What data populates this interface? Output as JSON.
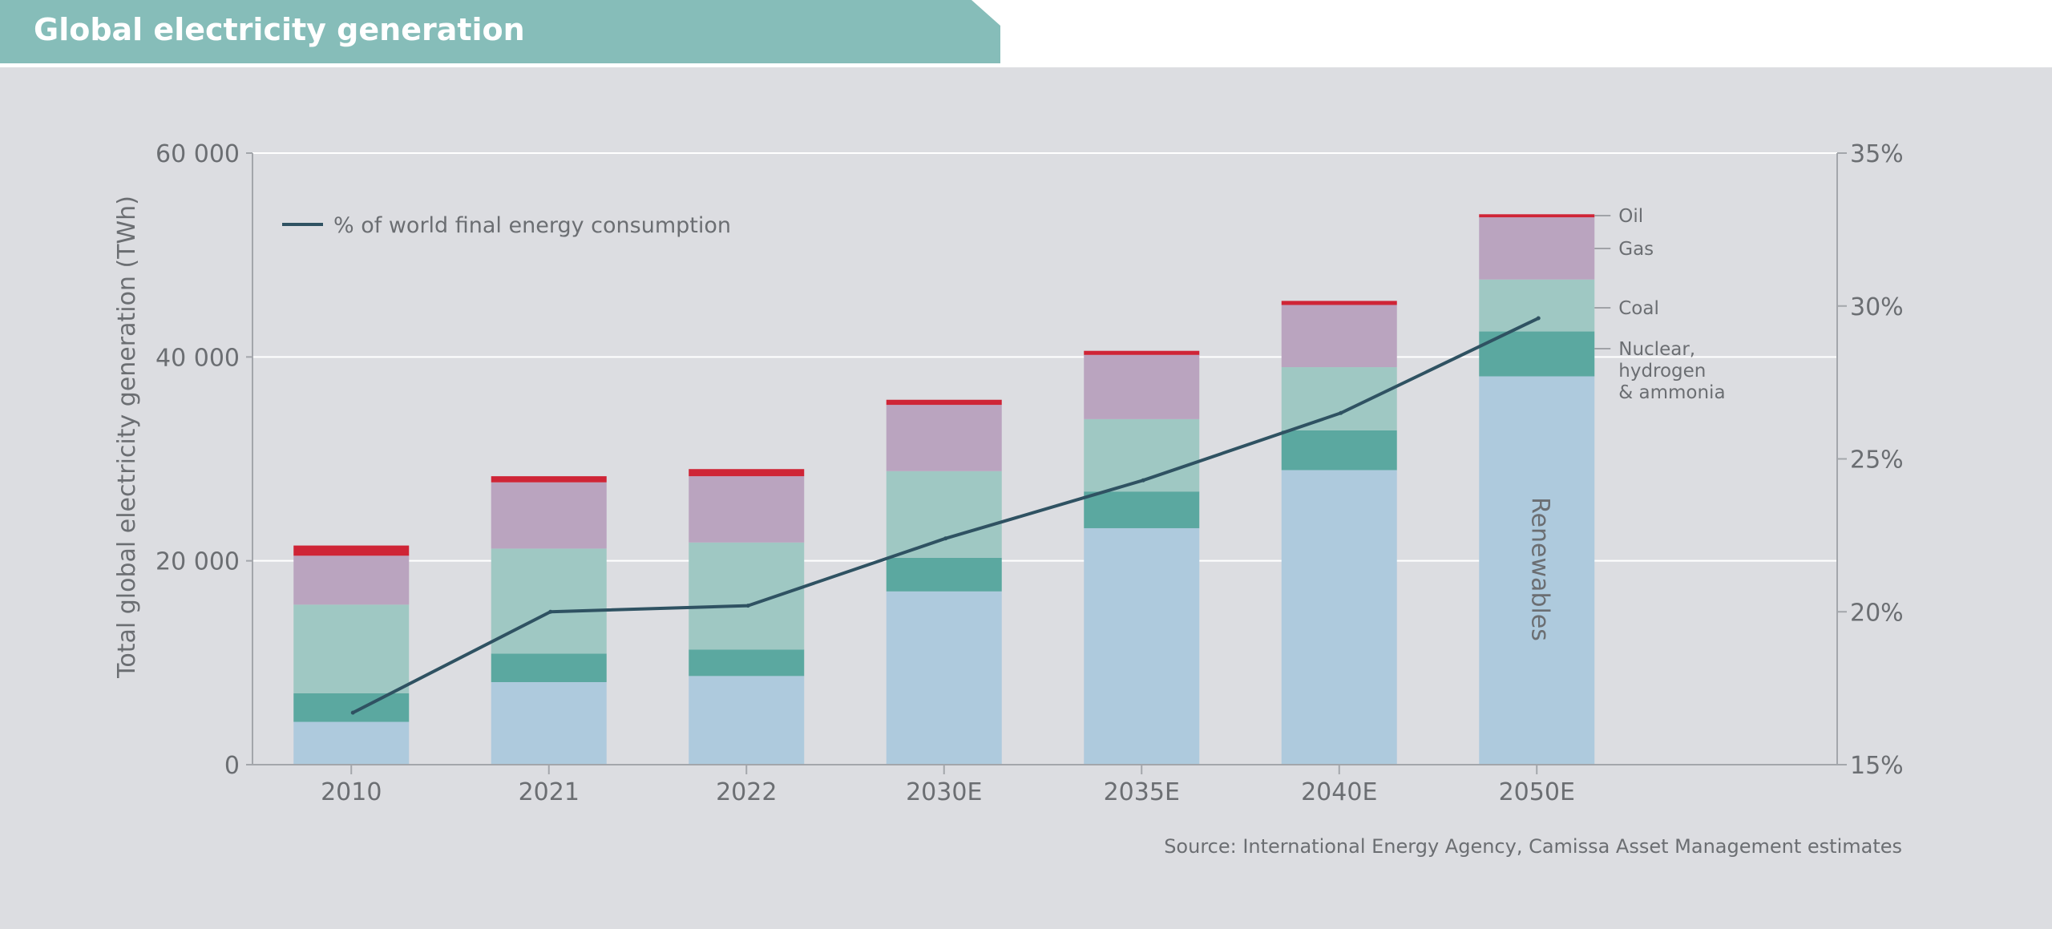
{
  "title": "Global electricity generation",
  "source": "Source: International Energy Agency, Camissa Asset Management estimates",
  "colors": {
    "header": "#86bdb9",
    "background": "#dcdde1",
    "renewables": "#aecadd",
    "nuclear": "#5ba8a0",
    "coal": "#9fc8c3",
    "gas": "#baa4bf",
    "oil": "#cf2436",
    "line": "#2f5262"
  },
  "chart_data": {
    "type": "bar",
    "stacked": true,
    "categories": [
      "2010",
      "2021",
      "2022",
      "2030E",
      "2035E",
      "2040E",
      "2050E"
    ],
    "series": [
      {
        "name": "Renewables",
        "color_key": "renewables",
        "values": [
          4200,
          8100,
          8700,
          17000,
          23200,
          28900,
          38100
        ]
      },
      {
        "name": "Nuclear, hydrogen & ammonia",
        "color_key": "nuclear",
        "values": [
          2800,
          2800,
          2600,
          3300,
          3600,
          3900,
          4400
        ]
      },
      {
        "name": "Coal",
        "color_key": "coal",
        "values": [
          8700,
          10300,
          10500,
          8500,
          7100,
          6200,
          5100
        ]
      },
      {
        "name": "Gas",
        "color_key": "gas",
        "values": [
          4800,
          6500,
          6500,
          6500,
          6300,
          6100,
          6100
        ]
      },
      {
        "name": "Oil",
        "color_key": "oil",
        "values": [
          1000,
          600,
          700,
          500,
          400,
          400,
          300
        ]
      }
    ],
    "line_series": {
      "name": "% of world final energy consumption",
      "axis": "right",
      "values": [
        16.7,
        20.0,
        20.2,
        22.4,
        24.3,
        26.5,
        29.6
      ]
    },
    "segment_labels": [
      "Oil",
      "Gas",
      "Coal",
      "Nuclear,",
      "hydrogen",
      "& ammonia"
    ],
    "bar_text": "Renewables",
    "ylabel": "Total global electricity generation (TWh)",
    "ylim": [
      0,
      60000
    ],
    "yticks": [
      0,
      20000,
      40000,
      60000
    ],
    "ytick_labels": [
      "0",
      "20 000",
      "40 000",
      "60 000"
    ],
    "y2lim": [
      15,
      35
    ],
    "y2ticks": [
      15,
      20,
      25,
      30,
      35
    ],
    "y2tick_labels": [
      "15%",
      "20%",
      "25%",
      "30%",
      "35%"
    ],
    "grid": true,
    "legend_position": "top-left"
  }
}
